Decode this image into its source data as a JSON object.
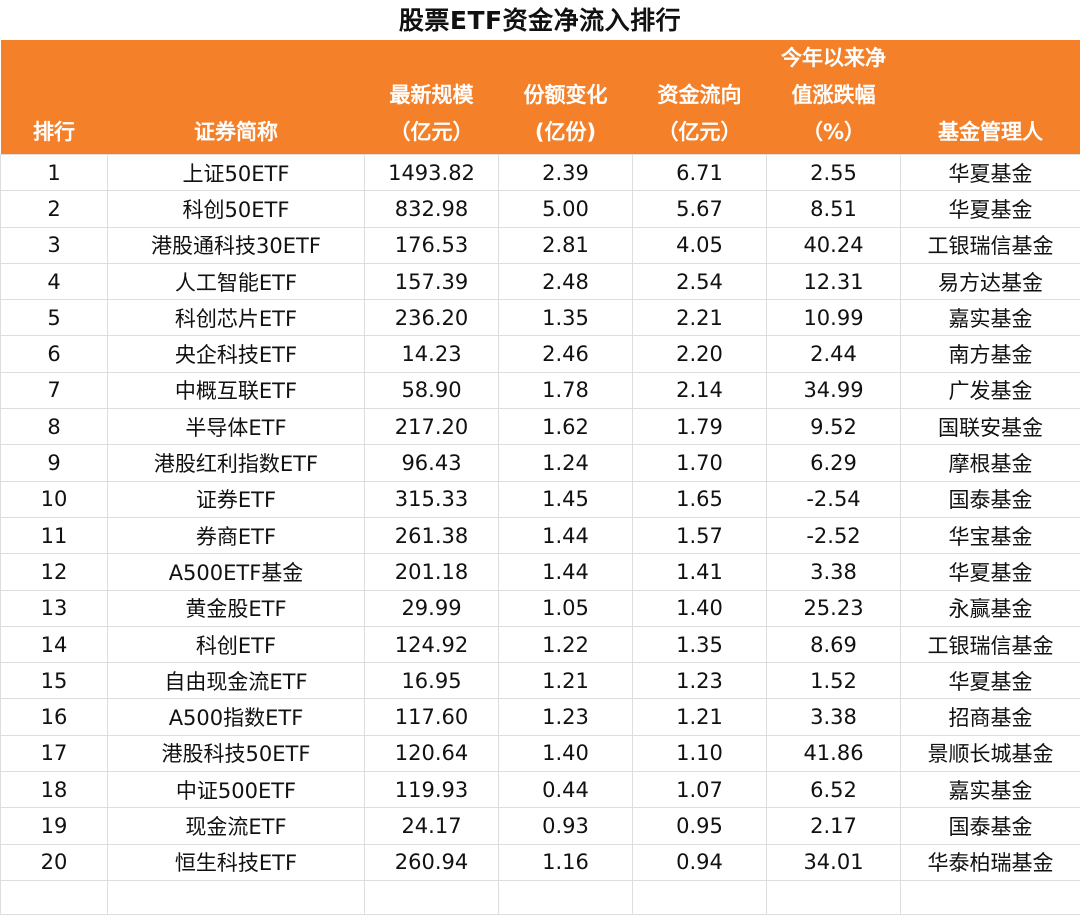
{
  "title": "股票ETF资金净流入排行",
  "header": {
    "rank": [
      "排行"
    ],
    "name": [
      "证券简称"
    ],
    "scale": [
      "最新规模",
      "（亿元）"
    ],
    "share_change": [
      "份额变化",
      "(亿份)"
    ],
    "flow": [
      "资金流向",
      "（亿元）"
    ],
    "ytd": [
      "今年以来净",
      "值涨跌幅",
      "（%）"
    ],
    "manager": [
      "基金管理人"
    ]
  },
  "rows": [
    {
      "rank": "1",
      "name": "上证50ETF",
      "scale": "1493.82",
      "share_change": "2.39",
      "flow": "6.71",
      "ytd": "2.55",
      "manager": "华夏基金"
    },
    {
      "rank": "2",
      "name": "科创50ETF",
      "scale": "832.98",
      "share_change": "5.00",
      "flow": "5.67",
      "ytd": "8.51",
      "manager": "华夏基金"
    },
    {
      "rank": "3",
      "name": "港股通科技30ETF",
      "scale": "176.53",
      "share_change": "2.81",
      "flow": "4.05",
      "ytd": "40.24",
      "manager": "工银瑞信基金"
    },
    {
      "rank": "4",
      "name": "人工智能ETF",
      "scale": "157.39",
      "share_change": "2.48",
      "flow": "2.54",
      "ytd": "12.31",
      "manager": "易方达基金"
    },
    {
      "rank": "5",
      "name": "科创芯片ETF",
      "scale": "236.20",
      "share_change": "1.35",
      "flow": "2.21",
      "ytd": "10.99",
      "manager": "嘉实基金"
    },
    {
      "rank": "6",
      "name": "央企科技ETF",
      "scale": "14.23",
      "share_change": "2.46",
      "flow": "2.20",
      "ytd": "2.44",
      "manager": "南方基金"
    },
    {
      "rank": "7",
      "name": "中概互联ETF",
      "scale": "58.90",
      "share_change": "1.78",
      "flow": "2.14",
      "ytd": "34.99",
      "manager": "广发基金"
    },
    {
      "rank": "8",
      "name": "半导体ETF",
      "scale": "217.20",
      "share_change": "1.62",
      "flow": "1.79",
      "ytd": "9.52",
      "manager": "国联安基金"
    },
    {
      "rank": "9",
      "name": "港股红利指数ETF",
      "scale": "96.43",
      "share_change": "1.24",
      "flow": "1.70",
      "ytd": "6.29",
      "manager": "摩根基金"
    },
    {
      "rank": "10",
      "name": "证券ETF",
      "scale": "315.33",
      "share_change": "1.45",
      "flow": "1.65",
      "ytd": "-2.54",
      "manager": "国泰基金"
    },
    {
      "rank": "11",
      "name": "券商ETF",
      "scale": "261.38",
      "share_change": "1.44",
      "flow": "1.57",
      "ytd": "-2.52",
      "manager": "华宝基金"
    },
    {
      "rank": "12",
      "name": "A500ETF基金",
      "scale": "201.18",
      "share_change": "1.44",
      "flow": "1.41",
      "ytd": "3.38",
      "manager": "华夏基金"
    },
    {
      "rank": "13",
      "name": "黄金股ETF",
      "scale": "29.99",
      "share_change": "1.05",
      "flow": "1.40",
      "ytd": "25.23",
      "manager": "永赢基金"
    },
    {
      "rank": "14",
      "name": "科创ETF",
      "scale": "124.92",
      "share_change": "1.22",
      "flow": "1.35",
      "ytd": "8.69",
      "manager": "工银瑞信基金"
    },
    {
      "rank": "15",
      "name": "自由现金流ETF",
      "scale": "16.95",
      "share_change": "1.21",
      "flow": "1.23",
      "ytd": "1.52",
      "manager": "华夏基金"
    },
    {
      "rank": "16",
      "name": "A500指数ETF",
      "scale": "117.60",
      "share_change": "1.23",
      "flow": "1.21",
      "ytd": "3.38",
      "manager": "招商基金"
    },
    {
      "rank": "17",
      "name": "港股科技50ETF",
      "scale": "120.64",
      "share_change": "1.40",
      "flow": "1.10",
      "ytd": "41.86",
      "manager": "景顺长城基金"
    },
    {
      "rank": "18",
      "name": "中证500ETF",
      "scale": "119.93",
      "share_change": "0.44",
      "flow": "1.07",
      "ytd": "6.52",
      "manager": "嘉实基金"
    },
    {
      "rank": "19",
      "name": "现金流ETF",
      "scale": "24.17",
      "share_change": "0.93",
      "flow": "0.95",
      "ytd": "2.17",
      "manager": "国泰基金"
    },
    {
      "rank": "20",
      "name": "恒生科技ETF",
      "scale": "260.94",
      "share_change": "1.16",
      "flow": "0.94",
      "ytd": "34.01",
      "manager": "华泰柏瑞基金"
    }
  ],
  "colors": {
    "header_background": "#f4812a",
    "header_text": "#ffffff",
    "grid_line": "#dedede"
  }
}
